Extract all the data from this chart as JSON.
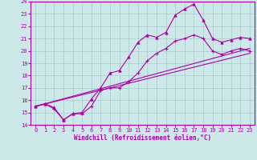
{
  "xlabel": "Windchill (Refroidissement éolien,°C)",
  "bg_color": "#cce8e8",
  "grid_color": "#aacccc",
  "line_color": "#aa00aa",
  "xlim": [
    -0.5,
    23.5
  ],
  "ylim": [
    14,
    24
  ],
  "xticks": [
    0,
    1,
    2,
    3,
    4,
    5,
    6,
    7,
    8,
    9,
    10,
    11,
    12,
    13,
    14,
    15,
    16,
    17,
    18,
    19,
    20,
    21,
    22,
    23
  ],
  "yticks": [
    14,
    15,
    16,
    17,
    18,
    19,
    20,
    21,
    22,
    23,
    24
  ],
  "line1_x": [
    0,
    1,
    2,
    3,
    4,
    5,
    6,
    7,
    8,
    9,
    10,
    11,
    12,
    13,
    14,
    15,
    16,
    17,
    18,
    19,
    20,
    21,
    22,
    23
  ],
  "line1_y": [
    15.5,
    15.7,
    15.4,
    14.4,
    14.9,
    15.0,
    16.1,
    17.0,
    18.2,
    18.4,
    19.5,
    20.7,
    21.3,
    21.1,
    21.5,
    22.9,
    23.4,
    23.8,
    22.5,
    21.0,
    20.7,
    20.9,
    21.1,
    21.0
  ],
  "line2_x": [
    0,
    1,
    2,
    3,
    4,
    5,
    6,
    7,
    8,
    9,
    10,
    11,
    12,
    13,
    14,
    15,
    16,
    17,
    18,
    19,
    20,
    21,
    22,
    23
  ],
  "line2_y": [
    15.5,
    15.7,
    15.3,
    14.4,
    14.9,
    14.9,
    15.5,
    16.8,
    17.0,
    17.0,
    17.5,
    18.2,
    19.2,
    19.8,
    20.2,
    20.8,
    21.0,
    21.3,
    21.0,
    20.0,
    19.7,
    20.0,
    20.2,
    20.0
  ],
  "line3_x": [
    0,
    23
  ],
  "line3_y": [
    15.5,
    20.2
  ],
  "line4_x": [
    0,
    23
  ],
  "line4_y": [
    15.5,
    19.8
  ]
}
